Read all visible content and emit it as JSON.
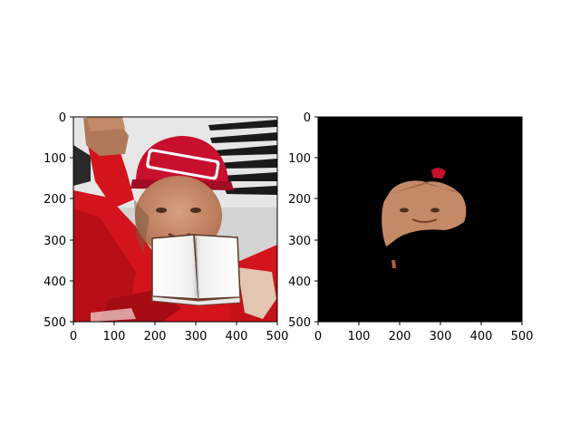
{
  "figure": {
    "panels": [
      {
        "name": "composite-image-with-book-occluder",
        "content": "photo",
        "xlim": [
          0,
          500
        ],
        "ylim": [
          500,
          0
        ],
        "y_inverted": true,
        "xticks": [
          "0",
          "100",
          "200",
          "300",
          "400",
          "500"
        ],
        "yticks": [
          "0",
          "100",
          "200",
          "300",
          "400",
          "500"
        ],
        "colors": {
          "suit_red": "#d3141c",
          "cap_red": "#c8102e",
          "skin": "#c8906c",
          "book_page": "#f2f2f0"
        },
        "icons": [
          "face-photo",
          "book-occluder"
        ]
      },
      {
        "name": "segmented-face-mask",
        "content": "mask",
        "xlim": [
          0,
          500
        ],
        "ylim": [
          500,
          0
        ],
        "y_inverted": true,
        "xticks": [
          "0",
          "100",
          "200",
          "300",
          "400",
          "500"
        ],
        "yticks": [
          "0",
          "100",
          "200",
          "300",
          "400",
          "500"
        ],
        "colors": {
          "background": "#000000",
          "skin": "#c48a68"
        },
        "icons": [
          "face-segment"
        ]
      }
    ]
  }
}
